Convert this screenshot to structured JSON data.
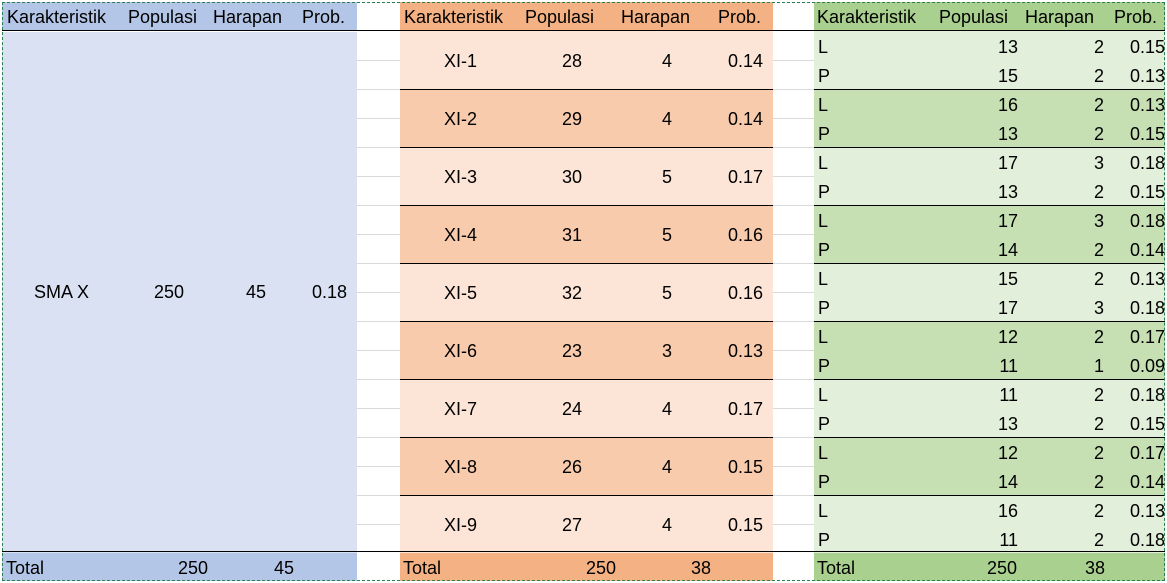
{
  "colors": {
    "blue_header": "#b4c6e7",
    "blue_body": "#d9e1f2",
    "orange_header": "#f4b183",
    "orange_light": "#fce4d6",
    "orange_dark": "#f8cbad",
    "green_header": "#a9d08e",
    "green_light": "#e2efda",
    "green_dark": "#c6e0b4"
  },
  "headers": [
    "Karakteristik",
    "Populasi",
    "Harapan",
    "Prob."
  ],
  "school": {
    "name": "SMA X",
    "population": "250",
    "expected": "45",
    "prob": "0.18",
    "total_label": "Total",
    "total_population": "250",
    "total_expected": "45"
  },
  "classes": {
    "rows": [
      {
        "name": "XI-1",
        "population": "28",
        "expected": "4",
        "prob": "0.14"
      },
      {
        "name": "XI-2",
        "population": "29",
        "expected": "4",
        "prob": "0.14"
      },
      {
        "name": "XI-3",
        "population": "30",
        "expected": "5",
        "prob": "0.17"
      },
      {
        "name": "XI-4",
        "population": "31",
        "expected": "5",
        "prob": "0.16"
      },
      {
        "name": "XI-5",
        "population": "32",
        "expected": "5",
        "prob": "0.16"
      },
      {
        "name": "XI-6",
        "population": "23",
        "expected": "3",
        "prob": "0.13"
      },
      {
        "name": "XI-7",
        "population": "24",
        "expected": "4",
        "prob": "0.17"
      },
      {
        "name": "XI-8",
        "population": "26",
        "expected": "4",
        "prob": "0.15"
      },
      {
        "name": "XI-9",
        "population": "27",
        "expected": "4",
        "prob": "0.15"
      }
    ],
    "total_label": "Total",
    "total_population": "250",
    "total_expected": "38"
  },
  "gender": {
    "rows": [
      {
        "sex": "L",
        "population": "13",
        "expected": "2",
        "prob": "0.15"
      },
      {
        "sex": "P",
        "population": "15",
        "expected": "2",
        "prob": "0.13"
      },
      {
        "sex": "L",
        "population": "16",
        "expected": "2",
        "prob": "0.13"
      },
      {
        "sex": "P",
        "population": "13",
        "expected": "2",
        "prob": "0.15"
      },
      {
        "sex": "L",
        "population": "17",
        "expected": "3",
        "prob": "0.18"
      },
      {
        "sex": "P",
        "population": "13",
        "expected": "2",
        "prob": "0.15"
      },
      {
        "sex": "L",
        "population": "17",
        "expected": "3",
        "prob": "0.18"
      },
      {
        "sex": "P",
        "population": "14",
        "expected": "2",
        "prob": "0.14"
      },
      {
        "sex": "L",
        "population": "15",
        "expected": "2",
        "prob": "0.13"
      },
      {
        "sex": "P",
        "population": "17",
        "expected": "3",
        "prob": "0.18"
      },
      {
        "sex": "L",
        "population": "12",
        "expected": "2",
        "prob": "0.17"
      },
      {
        "sex": "P",
        "population": "11",
        "expected": "1",
        "prob": "0.09"
      },
      {
        "sex": "L",
        "population": "11",
        "expected": "2",
        "prob": "0.18"
      },
      {
        "sex": "P",
        "population": "13",
        "expected": "2",
        "prob": "0.15"
      },
      {
        "sex": "L",
        "population": "12",
        "expected": "2",
        "prob": "0.17"
      },
      {
        "sex": "P",
        "population": "14",
        "expected": "2",
        "prob": "0.14"
      },
      {
        "sex": "L",
        "population": "16",
        "expected": "2",
        "prob": "0.13"
      },
      {
        "sex": "P",
        "population": "11",
        "expected": "2",
        "prob": "0.18"
      }
    ],
    "total_label": "Total",
    "total_population": "250",
    "total_expected": "38"
  }
}
